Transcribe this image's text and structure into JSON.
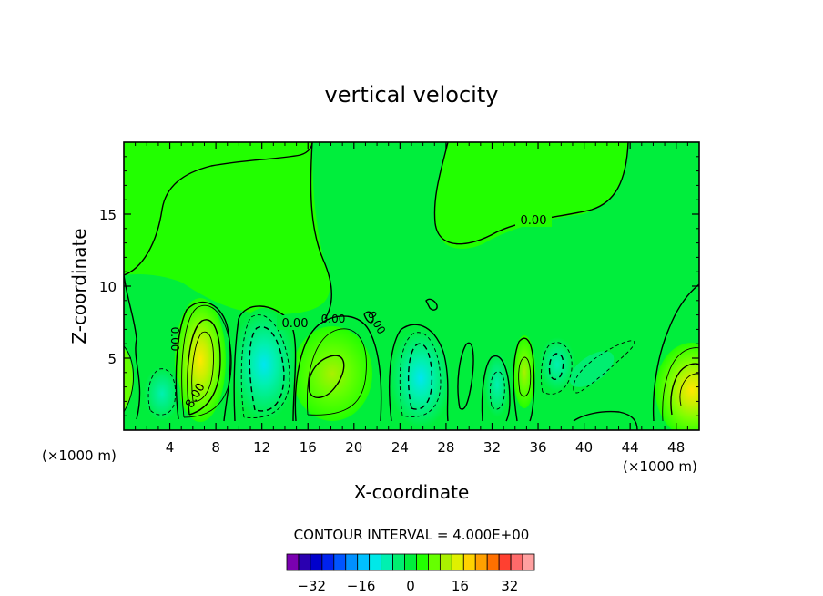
{
  "chart_data": {
    "type": "contour",
    "title": "vertical velocity",
    "xlabel": "X-coordinate",
    "ylabel": "Z-coordinate",
    "x_unit_note_left": "(×1000 m)",
    "x_unit_note_right": "(×1000 m)",
    "xlim": [
      0,
      50
    ],
    "ylim": [
      0,
      20
    ],
    "xticks": [
      4,
      8,
      12,
      16,
      20,
      24,
      28,
      32,
      36,
      40,
      44,
      48
    ],
    "yticks": [
      5,
      10,
      15
    ],
    "contour_interval_text": "CONTOUR INTERVAL = 4.000E+00",
    "contour_labels": [
      "0.00",
      "0.00",
      "0.00",
      "0.00",
      "0.00",
      "8.00"
    ],
    "colorbar": {
      "levels": [
        -36,
        -32,
        -28,
        -24,
        -20,
        -16,
        -12,
        -8,
        -4,
        0,
        4,
        8,
        12,
        16,
        20,
        24,
        28,
        32,
        36
      ],
      "tick_labels": [
        "-32",
        "-16",
        "0",
        "16",
        "32"
      ],
      "colors": [
        "#7a00b0",
        "#2a00b0",
        "#0000cc",
        "#0022ee",
        "#0055ff",
        "#0090ff",
        "#00c0ff",
        "#00e8e8",
        "#00f0b0",
        "#00ee70",
        "#00ee3c",
        "#22ff00",
        "#66ff00",
        "#aaf000",
        "#e0f000",
        "#ffd200",
        "#ffa000",
        "#ff7000",
        "#ff4030",
        "#ff6a6a",
        "#ffa0a0"
      ]
    },
    "features": [
      {
        "kind": "updraft",
        "x": 6.2,
        "z": 4.5,
        "peak": 16
      },
      {
        "kind": "downdraft",
        "x": 12.4,
        "z": 4.0,
        "peak": -12
      },
      {
        "kind": "updraft",
        "x": 17.9,
        "z": 3.8,
        "peak": 8
      },
      {
        "kind": "downdraft",
        "x": 26.0,
        "z": 3.2,
        "peak": -12
      },
      {
        "kind": "downdraft",
        "x": 32.0,
        "z": 2.8,
        "peak": -8
      },
      {
        "kind": "updraft",
        "x": 34.8,
        "z": 4.0,
        "peak": 8
      },
      {
        "kind": "downdraft",
        "x": 37.5,
        "z": 4.3,
        "peak": -8
      },
      {
        "kind": "updraft",
        "x": 48.8,
        "z": 3.0,
        "peak": 12
      },
      {
        "kind": "downdraft",
        "x": 2.8,
        "z": 2.2,
        "peak": -4
      }
    ]
  }
}
